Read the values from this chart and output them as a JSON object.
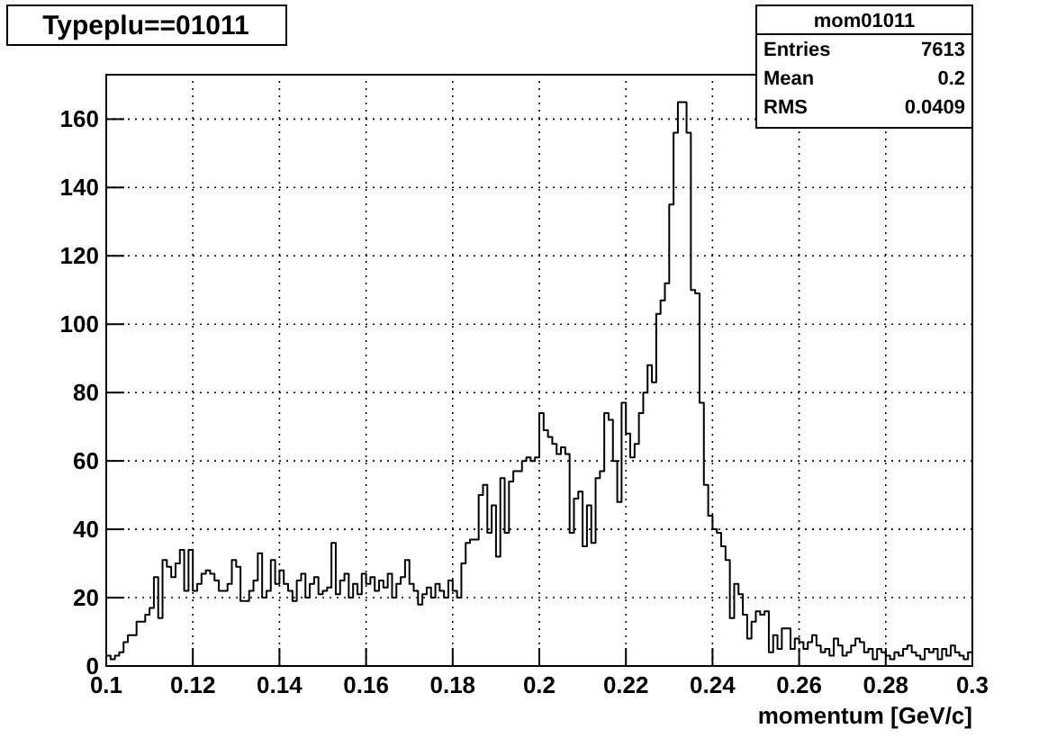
{
  "chart_data": {
    "type": "histogram",
    "title": "Typeplu==01011",
    "xlabel": "momentum [GeV/c]",
    "annotations": [
      "mom01011",
      "Entries",
      "7613",
      "Mean",
      "0.2",
      "RMS",
      "0.0409"
    ],
    "color": "#000000",
    "grid": true,
    "xlim": [
      0.1,
      0.3
    ],
    "xticks": [
      0.1,
      0.12,
      0.14,
      0.16,
      0.18,
      0.2,
      0.22,
      0.24,
      0.26,
      0.28,
      0.3
    ],
    "ylim": [
      0,
      173
    ],
    "yticks": [
      0,
      20,
      40,
      60,
      80,
      100,
      120,
      140,
      160
    ],
    "bins": [
      0.1,
      0.101,
      0.102,
      0.103,
      0.104,
      0.105,
      0.106,
      0.107,
      0.108,
      0.109,
      0.11,
      0.111,
      0.112,
      0.113,
      0.114,
      0.115,
      0.116,
      0.117,
      0.118,
      0.119,
      0.12,
      0.121,
      0.122,
      0.123,
      0.124,
      0.125,
      0.126,
      0.127,
      0.128,
      0.129,
      0.13,
      0.131,
      0.132,
      0.133,
      0.134,
      0.135,
      0.136,
      0.137,
      0.138,
      0.139,
      0.14,
      0.141,
      0.142,
      0.143,
      0.144,
      0.145,
      0.146,
      0.147,
      0.148,
      0.149,
      0.15,
      0.151,
      0.152,
      0.153,
      0.154,
      0.155,
      0.156,
      0.157,
      0.158,
      0.159,
      0.16,
      0.161,
      0.162,
      0.163,
      0.164,
      0.165,
      0.166,
      0.167,
      0.168,
      0.169,
      0.17,
      0.171,
      0.172,
      0.173,
      0.174,
      0.175,
      0.176,
      0.177,
      0.178,
      0.179,
      0.18,
      0.181,
      0.182,
      0.183,
      0.184,
      0.185,
      0.186,
      0.187,
      0.188,
      0.189,
      0.19,
      0.191,
      0.192,
      0.193,
      0.194,
      0.195,
      0.196,
      0.197,
      0.198,
      0.199,
      0.2,
      0.201,
      0.202,
      0.203,
      0.204,
      0.205,
      0.206,
      0.207,
      0.208,
      0.209,
      0.21,
      0.211,
      0.212,
      0.213,
      0.214,
      0.215,
      0.216,
      0.217,
      0.218,
      0.219,
      0.22,
      0.221,
      0.222,
      0.223,
      0.224,
      0.225,
      0.226,
      0.227,
      0.228,
      0.229,
      0.23,
      0.231,
      0.232,
      0.233,
      0.234,
      0.235,
      0.236,
      0.237,
      0.238,
      0.239,
      0.24,
      0.241,
      0.242,
      0.243,
      0.244,
      0.245,
      0.246,
      0.247,
      0.248,
      0.249,
      0.25,
      0.251,
      0.252,
      0.253,
      0.254,
      0.255,
      0.256,
      0.257,
      0.258,
      0.259,
      0.26,
      0.261,
      0.262,
      0.263,
      0.264,
      0.265,
      0.266,
      0.267,
      0.268,
      0.269,
      0.27,
      0.271,
      0.272,
      0.273,
      0.274,
      0.275,
      0.276,
      0.277,
      0.278,
      0.279,
      0.28,
      0.281,
      0.282,
      0.283,
      0.284,
      0.285,
      0.286,
      0.287,
      0.288,
      0.289,
      0.29,
      0.291,
      0.292,
      0.293,
      0.294,
      0.295,
      0.296,
      0.297,
      0.298,
      0.299,
      0.3
    ],
    "values": [
      3,
      2,
      3,
      4,
      7,
      9,
      9,
      13,
      13,
      15,
      17,
      26,
      14,
      31,
      29,
      26,
      30,
      34,
      22,
      34,
      22,
      24,
      27,
      28,
      27,
      25,
      22,
      22,
      24,
      31,
      29,
      19,
      19,
      22,
      25,
      33,
      20,
      22,
      31,
      24,
      28,
      24,
      22,
      19,
      25,
      27,
      20,
      24,
      26,
      21,
      22,
      23,
      36,
      21,
      25,
      27,
      20,
      24,
      21,
      27,
      24,
      26,
      22,
      25,
      23,
      27,
      20,
      24,
      26,
      31,
      24,
      22,
      18,
      21,
      23,
      20,
      24,
      22,
      20,
      25,
      22,
      20,
      30,
      36,
      37,
      37,
      50,
      53,
      39,
      47,
      32,
      55,
      39,
      54,
      57,
      57,
      60,
      61,
      60,
      61,
      74,
      69,
      67,
      65,
      62,
      64,
      62,
      39,
      49,
      51,
      35,
      47,
      36,
      55,
      57,
      74,
      72,
      60,
      48,
      77,
      68,
      61,
      65,
      74,
      80,
      88,
      83,
      103,
      107,
      112,
      135,
      156,
      165,
      165,
      156,
      110,
      109,
      77,
      53,
      44,
      40,
      39,
      35,
      31,
      14,
      24,
      21,
      15,
      8,
      13,
      16,
      15,
      16,
      4,
      9,
      5,
      11,
      11,
      5,
      8,
      7,
      5,
      7,
      9,
      6,
      4,
      5,
      3,
      8,
      6,
      3,
      4,
      6,
      8,
      7,
      4,
      5,
      2,
      5,
      4,
      3,
      2,
      4,
      3,
      5,
      6,
      4,
      3,
      2,
      5,
      4,
      5,
      2,
      5,
      3,
      6,
      4,
      3,
      2,
      4
    ]
  }
}
